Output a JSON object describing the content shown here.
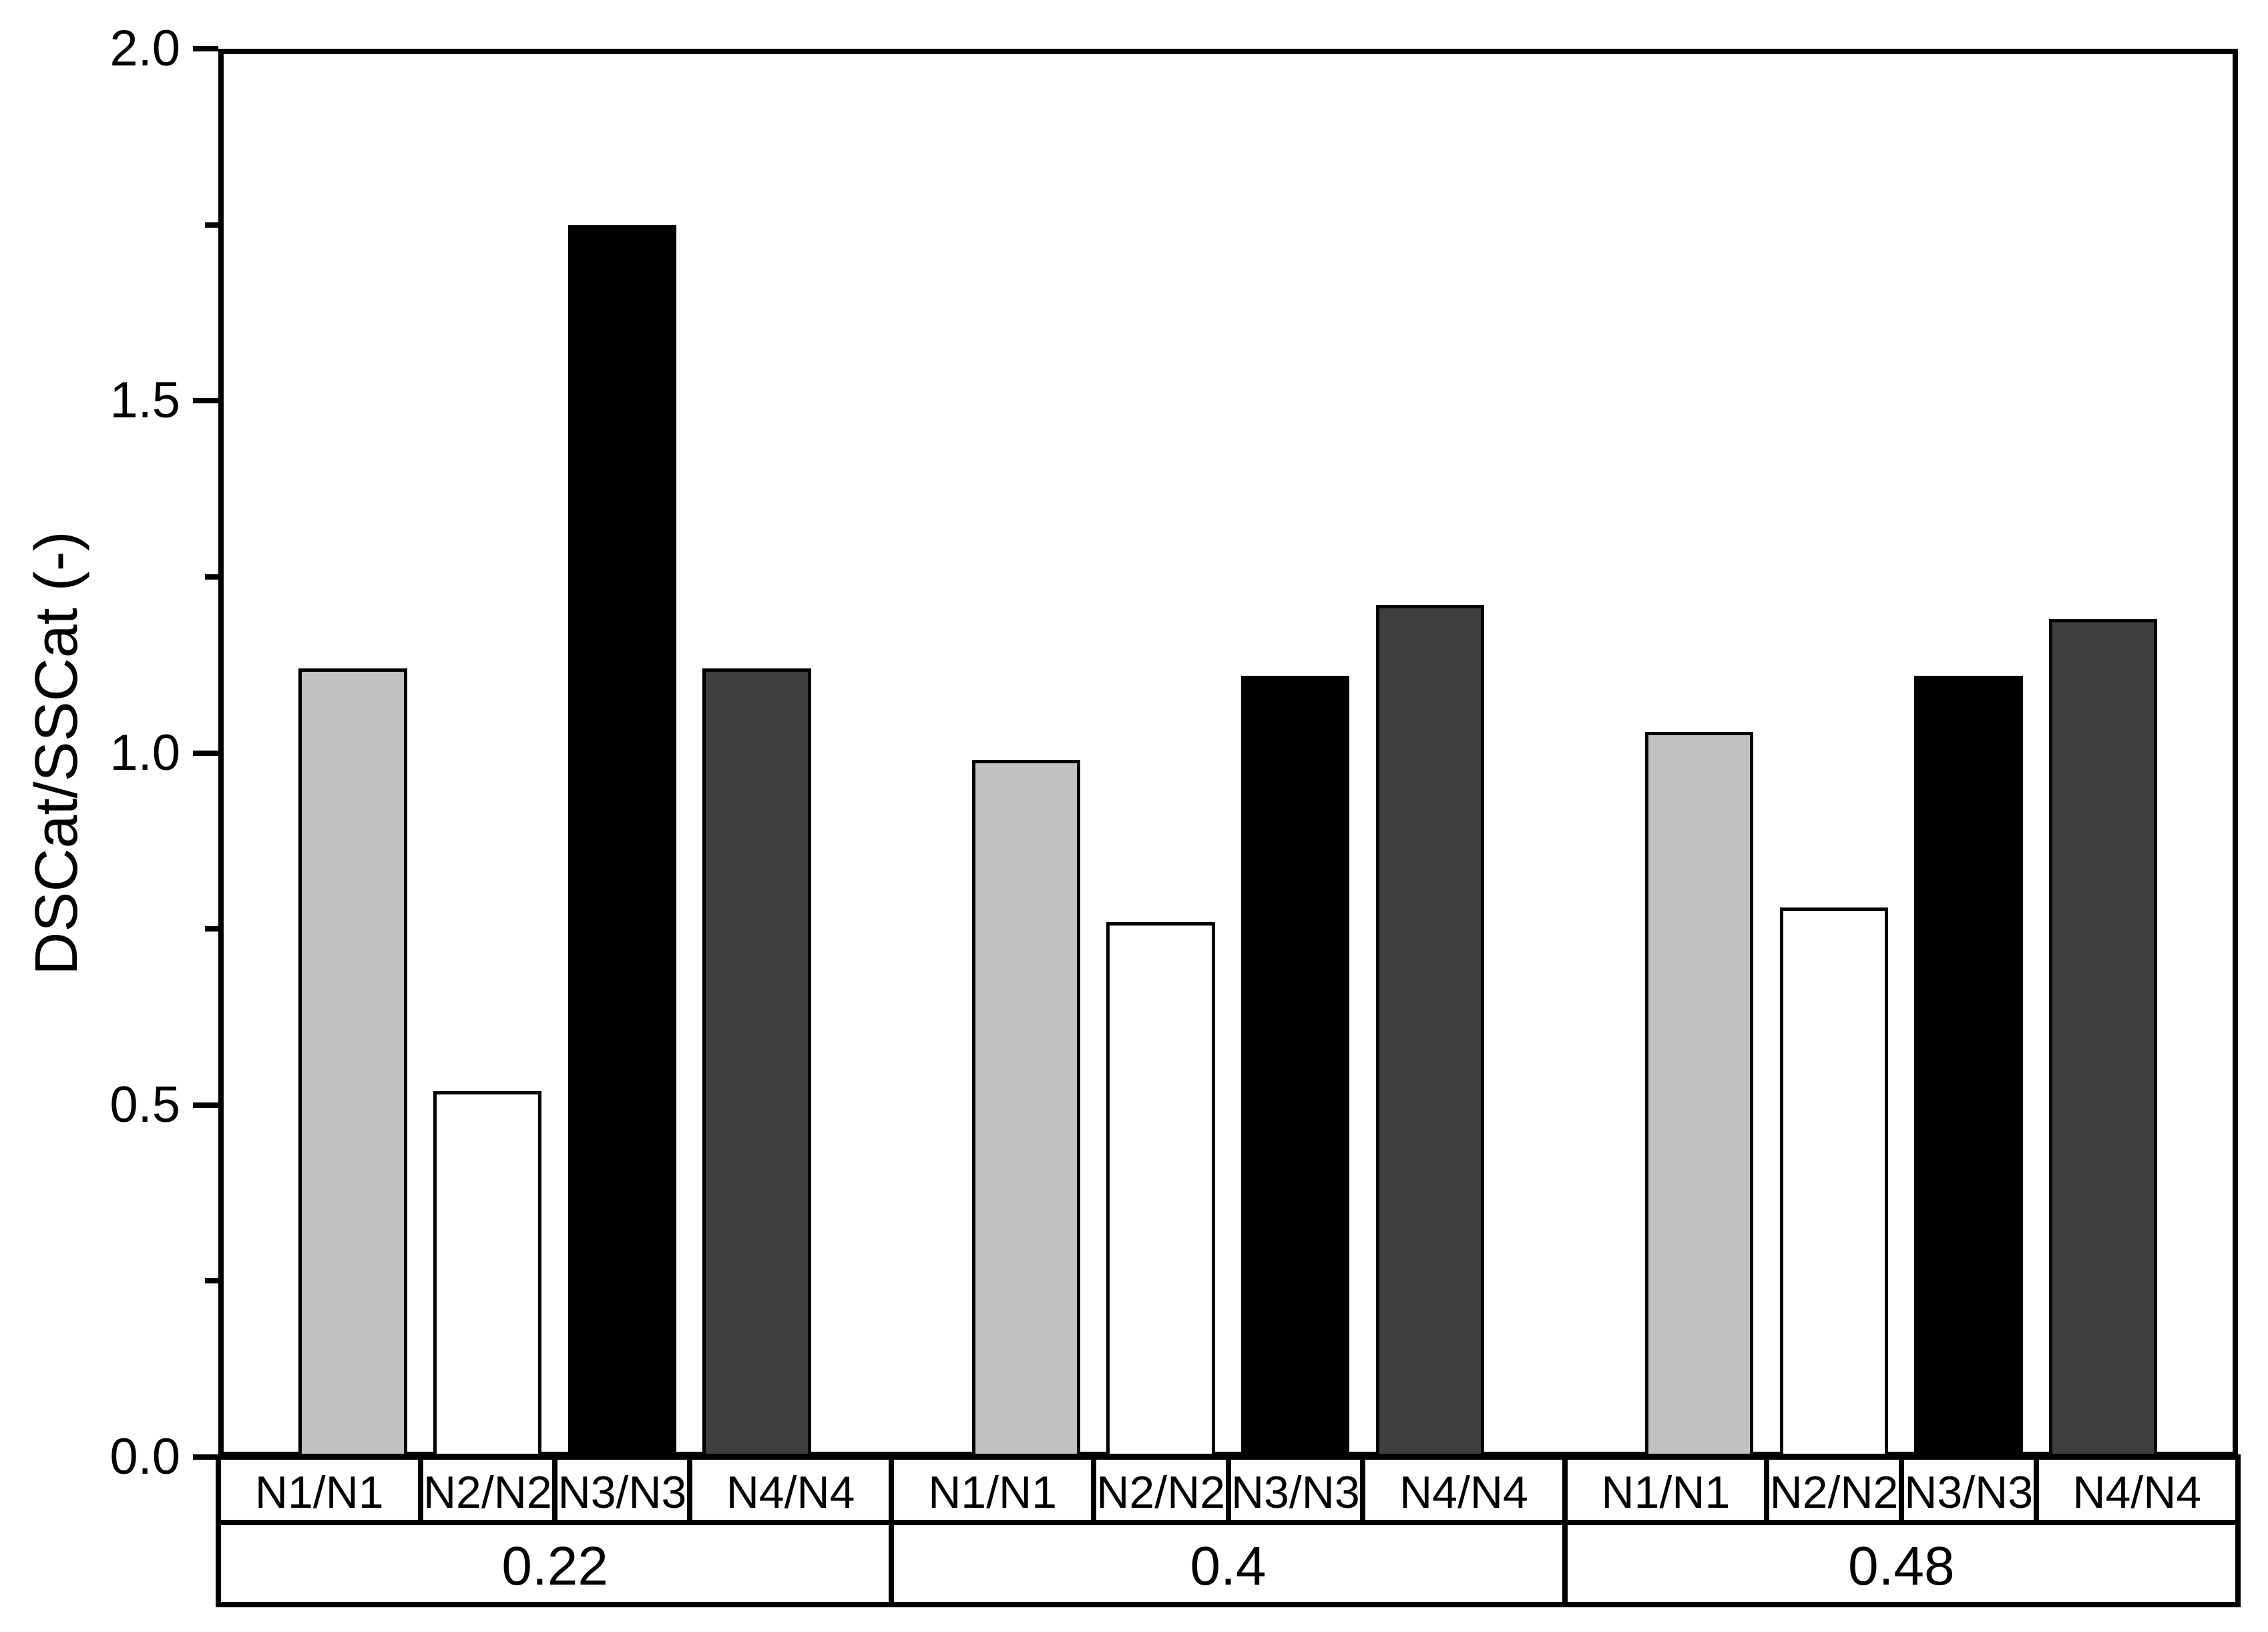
{
  "chart_data": {
    "type": "bar",
    "title": "",
    "xlabel": "",
    "ylabel": "DSCat/SSCat (-)",
    "ylim": [
      0,
      2
    ],
    "y_major_ticks": [
      "0.0",
      "0.5",
      "1.0",
      "1.5",
      "2.0"
    ],
    "y_major_tick_values": [
      0.0,
      0.5,
      1.0,
      1.5,
      2.0
    ],
    "y_minor_tick_values": [
      0.25,
      0.75,
      1.25,
      1.75
    ],
    "grid": false,
    "legend_position": "none",
    "frame": "full-box",
    "categories": [
      "0.22",
      "0.4",
      "0.48"
    ],
    "series": [
      {
        "name": "N1/N1",
        "fill": "#c1c1c1",
        "values": [
          1.12,
          0.99,
          1.03
        ]
      },
      {
        "name": "N2/N2",
        "fill": "#ffffff",
        "values": [
          0.52,
          0.76,
          0.78
        ]
      },
      {
        "name": "N3/N3",
        "fill": "#000000",
        "values": [
          1.75,
          1.11,
          1.11
        ]
      },
      {
        "name": "N4/N4",
        "fill": "#3f3f3f",
        "values": [
          1.12,
          1.21,
          1.19
        ]
      }
    ],
    "bar_outline_color": "#000000",
    "axis_color": "#000000",
    "background_color": "#ffffff"
  }
}
